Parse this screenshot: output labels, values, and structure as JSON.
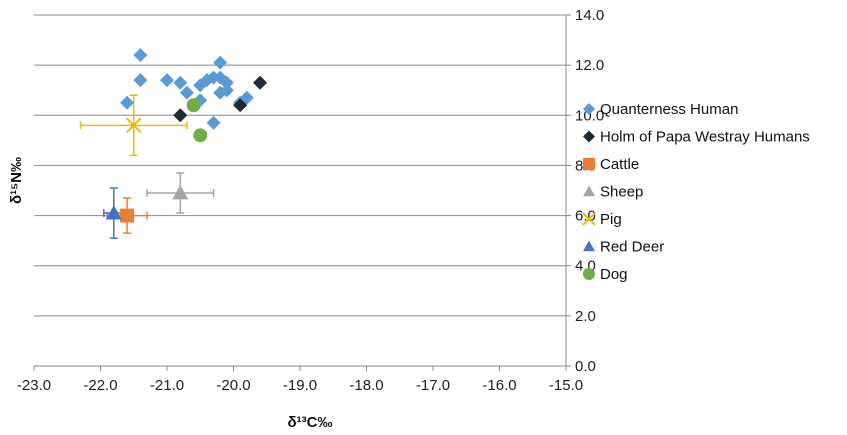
{
  "chart_data": {
    "type": "scatter",
    "title": "",
    "xlabel": "δ¹³C‰",
    "ylabel": "δ¹⁵N‰",
    "xlim": [
      -23.0,
      -15.0
    ],
    "ylim": [
      0.0,
      14.0
    ],
    "x_ticks": [
      "-23.0",
      "-22.0",
      "-21.0",
      "-20.0",
      "-19.0",
      "-18.0",
      "-17.0",
      "-16.0",
      "-15.0"
    ],
    "y_ticks": [
      "0.0",
      "2.0",
      "4.0",
      "6.0",
      "8.0",
      "10.0",
      "12.0",
      "14.0"
    ],
    "grid": "horizontal",
    "legend_position": "right",
    "series": [
      {
        "name": "Quanterness Human",
        "marker": "diamond",
        "color": "#5b9bd5",
        "points": [
          [
            -21.4,
            12.4
          ],
          [
            -21.4,
            11.4
          ],
          [
            -21.6,
            10.5
          ],
          [
            -21.0,
            11.4
          ],
          [
            -20.8,
            11.3
          ],
          [
            -20.7,
            10.9
          ],
          [
            -20.5,
            11.2
          ],
          [
            -20.4,
            11.4
          ],
          [
            -20.3,
            11.5
          ],
          [
            -20.2,
            12.1
          ],
          [
            -20.2,
            11.5
          ],
          [
            -20.1,
            11.3
          ],
          [
            -20.2,
            10.9
          ],
          [
            -20.1,
            11.0
          ],
          [
            -20.5,
            10.6
          ],
          [
            -20.3,
            9.7
          ],
          [
            -19.9,
            10.5
          ],
          [
            -19.8,
            10.7
          ]
        ]
      },
      {
        "name": "Holm of Papa Westray Humans",
        "marker": "diamond",
        "color": "#1f2a36",
        "points": [
          [
            -20.8,
            10.0
          ],
          [
            -19.9,
            10.4
          ],
          [
            -19.6,
            11.3
          ]
        ]
      },
      {
        "name": "Cattle",
        "marker": "square",
        "color": "#ed7d31",
        "points": [
          [
            -21.6,
            6.0
          ]
        ],
        "x_error": 0.3,
        "y_error": 0.7
      },
      {
        "name": "Sheep",
        "marker": "triangle",
        "color": "#a5a5a5",
        "points": [
          [
            -20.8,
            6.9
          ]
        ],
        "x_error": 0.5,
        "y_error": 0.8
      },
      {
        "name": "Pig",
        "marker": "x",
        "color": "#f2b800",
        "points": [
          [
            -21.5,
            9.6
          ]
        ],
        "x_error": 0.8,
        "y_error": 1.2
      },
      {
        "name": "Red Deer",
        "marker": "triangle",
        "color": "#4472c4",
        "points": [
          [
            -21.8,
            6.1
          ]
        ],
        "x_error": 0.15,
        "y_error": 1.0
      },
      {
        "name": "Dog",
        "marker": "circle",
        "color": "#70ad47",
        "points": [
          [
            -20.6,
            10.4
          ],
          [
            -20.5,
            9.2
          ]
        ]
      }
    ]
  }
}
